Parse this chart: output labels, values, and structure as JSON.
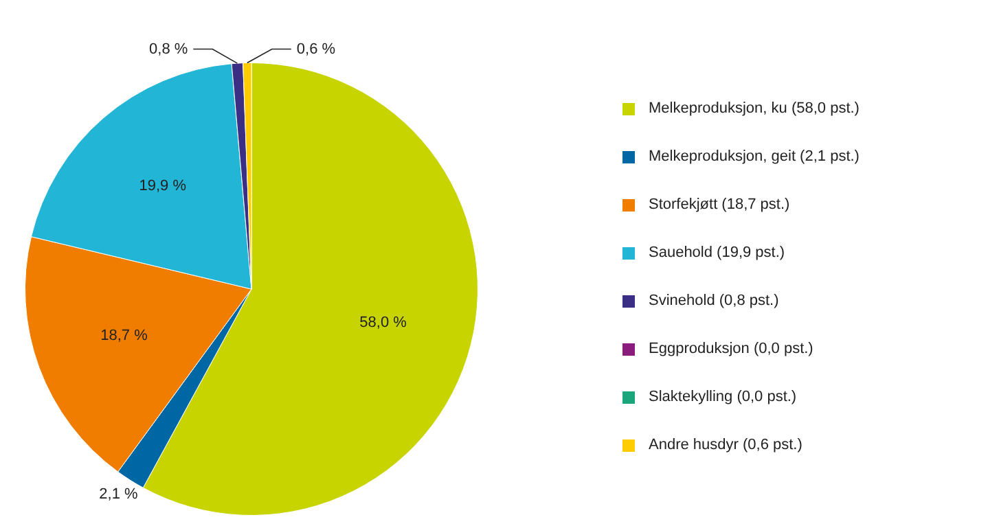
{
  "chart_data": {
    "type": "pie",
    "categories": [
      "Melkeproduksjon, ku (58,0 pst.)",
      "Melkeproduksjon, geit (2,1 pst.)",
      "Storfekjøtt (18,7 pst.)",
      "Sauehold (19,9 pst.)",
      "Svinehold (0,8 pst.)",
      "Eggproduksjon (0,0 pst.)",
      "Slaktekylling (0,0 pst.)",
      "Andre husdyr (0,6 pst.)"
    ],
    "values": [
      58.0,
      2.1,
      18.7,
      19.9,
      0.8,
      0.0,
      0.0,
      0.6
    ],
    "colors": [
      "#c8d400",
      "#0067a5",
      "#f07d00",
      "#22b5d6",
      "#3a2f85",
      "#8a1c7c",
      "#1aa57a",
      "#ffcc00"
    ],
    "value_labels": [
      "58,0 %",
      "2,1 %",
      "18,7 %",
      "19,9 %",
      "0,8 %",
      null,
      null,
      "0,6 %"
    ],
    "legend": "right"
  }
}
